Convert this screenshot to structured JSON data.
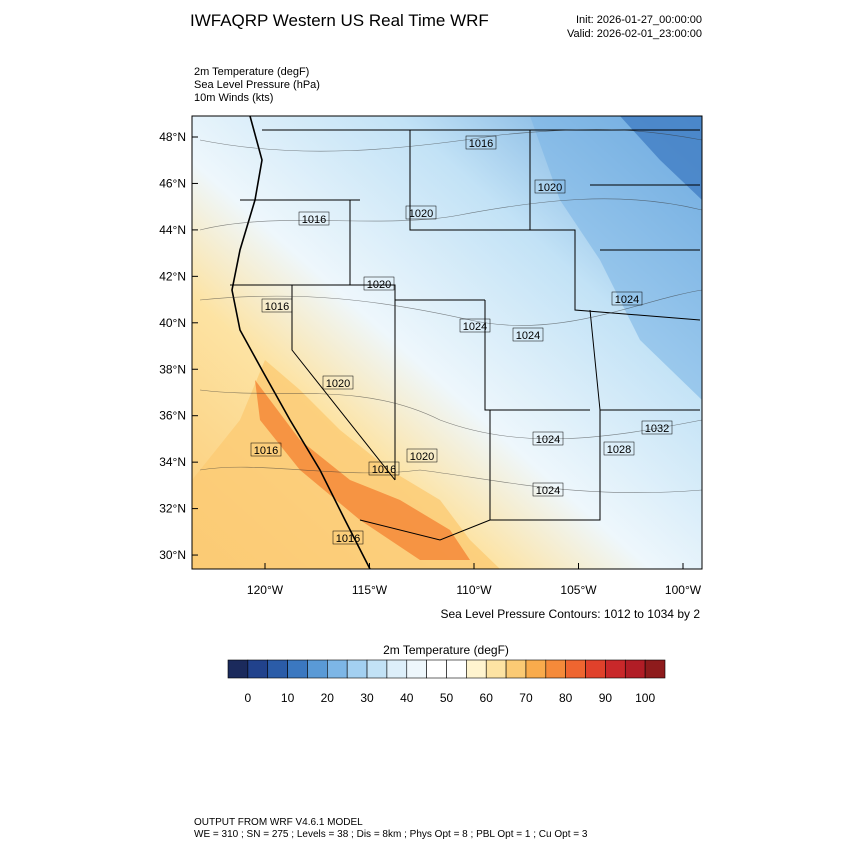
{
  "header": {
    "title": "IWFAQRP Western US Real Time WRF",
    "init": "Init: 2026-01-27_00:00:00",
    "valid": "Valid: 2026-02-01_23:00:00"
  },
  "fields": [
    "2m Temperature   (degF)",
    "Sea Level Pressure   (hPa)",
    "10m Winds   (kts)"
  ],
  "map": {
    "lat_labels": [
      "48°N",
      "46°N",
      "44°N",
      "42°N",
      "40°N",
      "38°N",
      "36°N",
      "34°N",
      "32°N",
      "30°N"
    ],
    "lon_labels": [
      "120°W",
      "115°W",
      "110°W",
      "105°W",
      "100°W"
    ],
    "contour_labels": [
      "1016",
      "1020",
      "1016",
      "1020",
      "1020",
      "1016",
      "1024",
      "1024",
      "1024",
      "1020",
      "1032",
      "1024",
      "1028",
      "1016",
      "1020",
      "1016",
      "1024",
      "1016"
    ],
    "contour_note": "Sea Level Pressure Contours: 1012 to 1034 by 2"
  },
  "colorbar": {
    "title": "2m Temperature  (degF)",
    "colors": [
      "#1b2a5c",
      "#21428c",
      "#2b5ca8",
      "#3b78c0",
      "#5a9ad6",
      "#7db6e6",
      "#a3d0f1",
      "#c2e2f6",
      "#ddeffa",
      "#eef7fc",
      "#ffffff",
      "#ffffff",
      "#fff4cf",
      "#fde3a3",
      "#fbca74",
      "#f9ab4c",
      "#f58a3a",
      "#ef6530",
      "#e0412b",
      "#c9282a",
      "#b11d26",
      "#8e1b1c"
    ],
    "ticks": [
      0,
      10,
      20,
      30,
      40,
      50,
      60,
      70,
      80,
      90,
      100
    ]
  },
  "footer": [
    "OUTPUT FROM WRF V4.6.1 MODEL",
    "WE = 310 ; SN = 275 ; Levels = 38 ; Dis = 8km ; Phys Opt = 8 ; PBL Opt = 1 ; Cu Opt = 3"
  ]
}
